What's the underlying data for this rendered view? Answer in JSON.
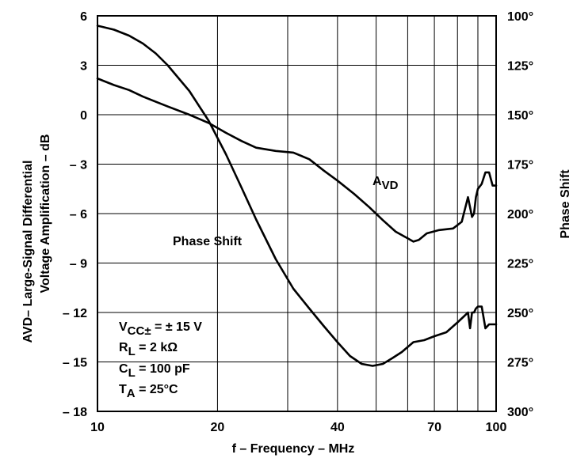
{
  "chart_data": {
    "type": "line",
    "xscale": "log",
    "xlim": [
      10,
      100
    ],
    "ylim_left": [
      -18,
      6
    ],
    "ylim_right": [
      300,
      100
    ],
    "x_ticks": [
      10,
      20,
      40,
      70,
      100
    ],
    "x_ticklabels": [
      "10",
      "20",
      "40",
      "70",
      "100"
    ],
    "y_left_ticklabels": [
      "6",
      "3",
      "0",
      "– 3",
      "– 6",
      "– 9",
      "– 12",
      "– 15",
      "– 18"
    ],
    "y_right_ticklabels": [
      "100°",
      "125°",
      "150°",
      "175°",
      "200°",
      "225°",
      "250°",
      "275°",
      "300°"
    ],
    "xlabel": "f – Frequency – MHz",
    "ylabel_left_line1": "AVD– Large-Signal Differential",
    "ylabel_left_line2": "Voltage Amplification – dB",
    "ylabel_right": "Phase Shift",
    "grid": true,
    "series": [
      {
        "name": "AVD",
        "axis": "left",
        "x": [
          10,
          11,
          12,
          13,
          15,
          17,
          19,
          21,
          23,
          25,
          28,
          31,
          34,
          37,
          40,
          44,
          48,
          52,
          56,
          60,
          62,
          64,
          67,
          72,
          78,
          82,
          85,
          87,
          88,
          89,
          90,
          92,
          94,
          96,
          98,
          100
        ],
        "y": [
          2.2,
          1.8,
          1.5,
          1.1,
          0.5,
          0.0,
          -0.5,
          -1.1,
          -1.6,
          -2.0,
          -2.2,
          -2.3,
          -2.7,
          -3.4,
          -4.0,
          -4.8,
          -5.6,
          -6.4,
          -7.1,
          -7.5,
          -7.7,
          -7.6,
          -7.2,
          -7.0,
          -6.9,
          -6.5,
          -5.0,
          -6.2,
          -6.0,
          -5.0,
          -4.5,
          -4.2,
          -3.5,
          -3.5,
          -4.3,
          -4.3
        ]
      },
      {
        "name": "Phase Shift",
        "axis": "right",
        "x": [
          10,
          11,
          12,
          13,
          14,
          15,
          17,
          19,
          21,
          23,
          25,
          28,
          31,
          34,
          37,
          40,
          43,
          46,
          49,
          52,
          55,
          58,
          62,
          66,
          70,
          75,
          80,
          83,
          85,
          86,
          87,
          88,
          89,
          90,
          92,
          94,
          96,
          100
        ],
        "y": [
          105,
          107,
          110,
          114,
          119,
          125,
          138,
          153,
          170,
          187,
          203,
          223,
          238,
          248,
          257,
          265,
          272,
          276,
          277,
          276,
          273,
          270,
          265,
          264,
          262,
          260,
          255,
          252,
          250,
          258,
          250,
          250,
          248,
          247,
          247,
          258,
          256,
          256
        ]
      }
    ],
    "annotations": {
      "avd_label_main": "A",
      "avd_label_sub": "VD",
      "phase_label": "Phase Shift",
      "cond1_main": "V",
      "cond1_sub": "CC±",
      "cond1_rest": " = ± 15 V",
      "cond2_main": "R",
      "cond2_sub": "L",
      "cond2_rest": " = 2 kΩ",
      "cond3_main": "C",
      "cond3_sub": "L",
      "cond3_rest": " = 100 pF",
      "cond4_main": "T",
      "cond4_sub": "A",
      "cond4_rest": " = 25°C"
    }
  }
}
